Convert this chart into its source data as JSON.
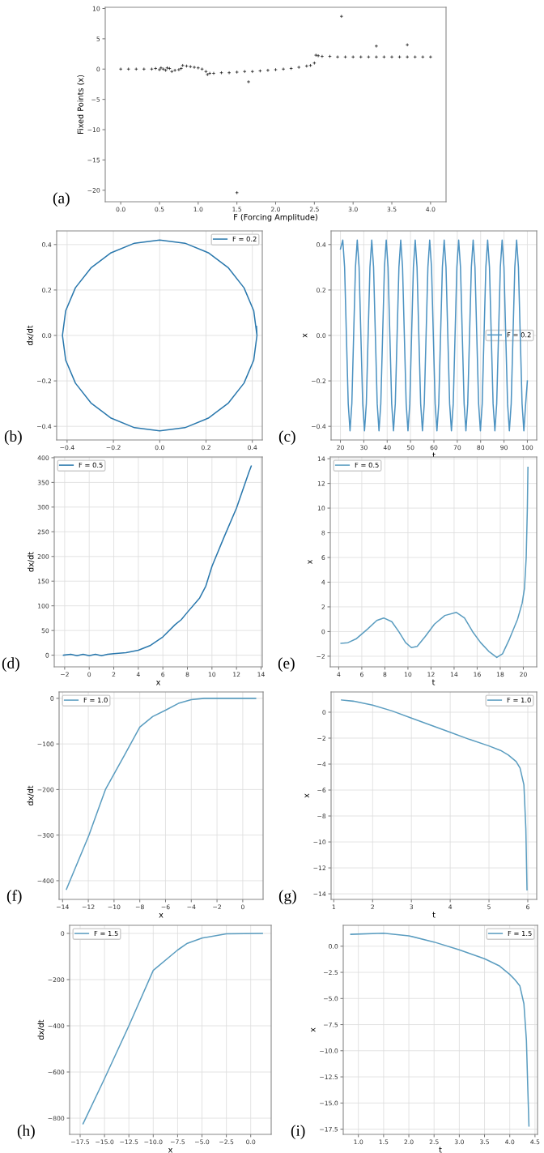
{
  "chart_data": [
    {
      "type": "scatter",
      "xlabel": "F (Forcing Amplitude)",
      "ylabel": "Fixed Points (x)",
      "annotations": [
        "(a)"
      ],
      "marker": "cross",
      "grid": false,
      "xlim": [
        -0.2,
        4.2
      ],
      "ylim": [
        -21.9,
        10.2
      ],
      "xticks": [
        {
          "value": 0,
          "label": "0.0"
        },
        0.5,
        {
          "value": 1,
          "label": "1.0"
        },
        1.5,
        {
          "value": 2,
          "label": "2.0"
        },
        2.5,
        {
          "value": 3,
          "label": "3.0"
        },
        3.5,
        {
          "value": 4,
          "label": "4.0"
        }
      ],
      "yticks": [
        {
          "value": -20,
          "label": "−20"
        },
        {
          "value": -15,
          "label": "−15"
        },
        {
          "value": -10,
          "label": "−10"
        },
        {
          "value": -5,
          "label": "−5"
        },
        0,
        5,
        10
      ],
      "series": [
        {
          "color": "#000000",
          "x": [
            0.0,
            0.1,
            0.2,
            0.3,
            0.4,
            0.45,
            0.5,
            0.52,
            0.55,
            0.58,
            0.6,
            0.63,
            0.66,
            0.7,
            0.75,
            0.78,
            0.8,
            0.85,
            0.9,
            0.95,
            1.0,
            1.05,
            1.1,
            1.12,
            1.15,
            1.2,
            1.3,
            1.4,
            1.5,
            1.6,
            1.7,
            1.8,
            1.9,
            2.0,
            2.1,
            2.2,
            2.3,
            2.4,
            2.45,
            2.5,
            2.52,
            2.55,
            2.6,
            2.7,
            2.8,
            2.9,
            3.0,
            3.1,
            3.2,
            3.3,
            3.4,
            3.5,
            3.6,
            3.7,
            3.8,
            3.9,
            4.0,
            1.5,
            1.65,
            2.85,
            3.3,
            3.7
          ],
          "values": [
            0,
            0,
            0,
            0,
            0,
            0.1,
            -0.1,
            0.2,
            0,
            -0.2,
            0.2,
            0.1,
            -0.4,
            -0.2,
            -0.1,
            0.1,
            0.6,
            0.5,
            0.4,
            0.3,
            0.2,
            0,
            -0.4,
            -0.9,
            -0.7,
            -0.7,
            -0.6,
            -0.6,
            -0.5,
            -0.4,
            -0.4,
            -0.3,
            -0.2,
            -0.1,
            0,
            0.1,
            0.3,
            0.5,
            0.6,
            1.0,
            2.3,
            2.2,
            2.1,
            2.1,
            2.0,
            2.0,
            2.0,
            2.0,
            2.0,
            2.0,
            2.0,
            2.0,
            2.0,
            2.0,
            2.0,
            2.0,
            2.0,
            -20.4,
            -2.1,
            8.7,
            3.8,
            4.0
          ]
        }
      ]
    },
    {
      "type": "line",
      "annotations": [
        "(b)"
      ],
      "grid": true,
      "legend": "top right",
      "xlim": [
        -0.445,
        0.443
      ],
      "ylim": [
        -0.46,
        0.46
      ],
      "xticks": [
        {
          "value": -0.4,
          "label": "−0.4"
        },
        {
          "value": -0.2,
          "label": "−0.2"
        },
        {
          "value": 0,
          "label": "0.0"
        },
        0.2,
        0.4
      ],
      "yticks": [
        {
          "value": -0.4,
          "label": "−0.4"
        },
        {
          "value": -0.2,
          "label": "−0.2"
        },
        {
          "value": 0,
          "label": "0.0"
        },
        0.2,
        0.4
      ],
      "ylabel": "dx/dt",
      "series": [
        {
          "name": "F = 0.2",
          "color": "#2a78ad",
          "x": [
            0.42,
            0.406,
            0.364,
            0.297,
            0.21,
            0.109,
            0,
            -0.109,
            -0.21,
            -0.297,
            -0.364,
            -0.406,
            -0.42,
            -0.406,
            -0.364,
            -0.297,
            -0.21,
            -0.109,
            0,
            0.109,
            0.21,
            0.297,
            0.364,
            0.406,
            0.42,
            0.418
          ],
          "values": [
            0,
            0.109,
            0.21,
            0.297,
            0.364,
            0.406,
            0.42,
            0.406,
            0.364,
            0.297,
            0.21,
            0.109,
            0,
            -0.109,
            -0.21,
            -0.297,
            -0.364,
            -0.406,
            -0.42,
            -0.406,
            -0.364,
            -0.297,
            -0.21,
            -0.109,
            0,
            0.04
          ]
        }
      ]
    },
    {
      "type": "line",
      "annotations": [
        "(c)"
      ],
      "grid": true,
      "legend": "right",
      "xlim": [
        16,
        104
      ],
      "ylim": [
        -0.46,
        0.46
      ],
      "xticks": [
        20,
        30,
        40,
        50,
        60,
        70,
        80,
        90,
        100
      ],
      "yticks": [
        {
          "value": -0.4,
          "label": "−0.4"
        },
        {
          "value": -0.2,
          "label": "−0.2"
        },
        {
          "value": 0,
          "label": "0.0"
        },
        0.2,
        0.4
      ],
      "xlabel": "t",
      "ylabel": "x",
      "series": [
        {
          "name": "F = 0.2",
          "color": "#4d93c2",
          "x": [
            20.0,
            21.0,
            21.78,
            22.55,
            23.33,
            24.1,
            24.88,
            25.65,
            26.43,
            27.2,
            27.98,
            28.75,
            29.53,
            30.3,
            31.08,
            31.85,
            32.63,
            33.4,
            34.18,
            34.95,
            35.73,
            36.5,
            37.28,
            38.05,
            38.83,
            39.6,
            40.38,
            41.15,
            41.93,
            42.7,
            43.48,
            44.25,
            45.03,
            45.8,
            46.58,
            47.35,
            48.13,
            48.9,
            49.68,
            50.45,
            51.23,
            52.0,
            52.78,
            53.55,
            54.33,
            55.1,
            55.88,
            56.65,
            57.43,
            58.2,
            58.98,
            59.75,
            60.53,
            61.3,
            62.08,
            62.85,
            63.63,
            64.4,
            65.18,
            65.95,
            66.73,
            67.5,
            68.28,
            69.05,
            69.83,
            70.6,
            71.38,
            72.15,
            72.93,
            73.7,
            74.48,
            75.25,
            76.03,
            76.8,
            77.58,
            78.35,
            79.13,
            79.9,
            80.68,
            81.45,
            82.23,
            83.0,
            83.78,
            84.55,
            85.33,
            86.1,
            86.88,
            87.65,
            88.43,
            89.2,
            89.98,
            90.75,
            91.53,
            92.3,
            93.08,
            93.85,
            94.63,
            95.4,
            96.18,
            96.95,
            97.73,
            98.5,
            99.28,
            100.0
          ],
          "values": [
            0.38,
            0.42,
            0.3,
            0,
            -0.3,
            -0.42,
            -0.3,
            0,
            0.3,
            0.42,
            0.3,
            0,
            -0.3,
            -0.42,
            -0.3,
            0,
            0.3,
            0.42,
            0.3,
            0,
            -0.3,
            -0.42,
            -0.3,
            0,
            0.3,
            0.42,
            0.3,
            0,
            -0.3,
            -0.42,
            -0.3,
            0,
            0.3,
            0.42,
            0.3,
            0,
            -0.3,
            -0.42,
            -0.3,
            0,
            0.3,
            0.42,
            0.3,
            0,
            -0.3,
            -0.42,
            -0.3,
            0,
            0.3,
            0.42,
            0.3,
            0,
            -0.3,
            -0.42,
            -0.3,
            0,
            0.3,
            0.42,
            0.3,
            0,
            -0.3,
            -0.42,
            -0.3,
            0,
            0.3,
            0.42,
            0.3,
            0,
            -0.3,
            -0.42,
            -0.3,
            0,
            0.3,
            0.42,
            0.3,
            0,
            -0.3,
            -0.42,
            -0.3,
            0,
            0.3,
            0.42,
            0.3,
            0,
            -0.3,
            -0.42,
            -0.3,
            0,
            0.3,
            0.42,
            0.3,
            0,
            -0.3,
            -0.42,
            -0.3,
            0,
            0.3,
            0.42,
            0.3,
            0,
            -0.3,
            -0.42,
            -0.3,
            -0.2
          ]
        }
      ]
    },
    {
      "type": "line",
      "annotations": [
        "(d)"
      ],
      "grid": true,
      "legend": "top left",
      "xlim": [
        -2.85,
        14.1
      ],
      "ylim": [
        -23.6,
        401.5
      ],
      "xticks": [
        {
          "value": -2,
          "label": "−2"
        },
        0,
        2,
        4,
        6,
        8,
        10,
        12,
        14
      ],
      "yticks": [
        0,
        50,
        100,
        150,
        200,
        250,
        300,
        350,
        400
      ],
      "xlabel": "x",
      "ylabel": "dx/dt",
      "series": [
        {
          "name": "F = 0.5",
          "color": "#2a78ad",
          "x": [
            -2.1,
            -1.5,
            -1.0,
            -0.5,
            0.0,
            0.5,
            1.0,
            1.5,
            2,
            3,
            4,
            5,
            6,
            7,
            7.5,
            8,
            9,
            9.5,
            10,
            11,
            12,
            13,
            13.2
          ],
          "values": [
            0,
            2,
            -1,
            2,
            -1,
            2,
            -1,
            2,
            3,
            5,
            10,
            20,
            37,
            62,
            72,
            87,
            116,
            140,
            180,
            240,
            298,
            370,
            383
          ]
        }
      ]
    },
    {
      "type": "line",
      "annotations": [
        "(e)"
      ],
      "grid": true,
      "legend": "top left",
      "xlim": [
        3.27,
        21.16
      ],
      "ylim": [
        -2.86,
        14.14
      ],
      "xticks": [
        4,
        6,
        8,
        10,
        12,
        14,
        16,
        18,
        20
      ],
      "yticks": [
        {
          "value": -2,
          "label": "−2"
        },
        0,
        2,
        4,
        6,
        8,
        10,
        12,
        14
      ],
      "xlabel": "t",
      "ylabel": "x",
      "series": [
        {
          "name": "F = 0.5",
          "color": "#5b9dc0",
          "x": [
            4.2,
            4.8,
            5.5,
            6.5,
            7.3,
            7.9,
            8.6,
            9.2,
            9.8,
            10.3,
            10.8,
            11.5,
            12.3,
            13.2,
            14.2,
            14.9,
            15.6,
            16.3,
            17.0,
            17.7,
            18.2,
            18.8,
            19.5,
            19.9,
            20.1,
            20.25,
            20.35,
            20.4
          ],
          "values": [
            -0.95,
            -0.9,
            -0.6,
            0.2,
            0.9,
            1.1,
            0.8,
            0,
            -0.9,
            -1.3,
            -1.2,
            -0.4,
            0.6,
            1.3,
            1.55,
            1.1,
            0,
            -0.9,
            -1.6,
            -2.1,
            -1.8,
            -0.6,
            1.0,
            2.3,
            3.5,
            6,
            10,
            13.3
          ]
        }
      ]
    },
    {
      "type": "line",
      "annotations": [
        "(f)"
      ],
      "grid": true,
      "legend": "top left",
      "xlim": [
        -14.27,
        1.58
      ],
      "ylim": [
        -441,
        14
      ],
      "xticks": [
        {
          "value": -14,
          "label": "−14"
        },
        {
          "value": -12,
          "label": "−12"
        },
        {
          "value": -10,
          "label": "−10"
        },
        {
          "value": -8,
          "label": "−8"
        },
        {
          "value": -6,
          "label": "−6"
        },
        {
          "value": -4,
          "label": "−4"
        },
        {
          "value": -2,
          "label": "−2"
        },
        0
      ],
      "yticks": [
        {
          "value": -400,
          "label": "−400"
        },
        {
          "value": -300,
          "label": "−300"
        },
        {
          "value": -200,
          "label": "−200"
        },
        {
          "value": -100,
          "label": "−100"
        },
        0
      ],
      "xlabel": "x",
      "ylabel": "dx/dt",
      "series": [
        {
          "name": "F = 1.0",
          "color": "#5b9dc0",
          "x": [
            -13.7,
            -11.95,
            -10.67,
            -9.16,
            -8,
            -7,
            -6,
            -5,
            -4,
            -3,
            1
          ],
          "values": [
            -419,
            -300,
            -200,
            -123,
            -63,
            -40,
            -26,
            -11,
            -3,
            0,
            0
          ]
        }
      ]
    },
    {
      "type": "line",
      "annotations": [
        "(g)"
      ],
      "grid": true,
      "legend": "top right",
      "xlim": [
        0.93,
        6.23
      ],
      "ylim": [
        -14.43,
        1.56
      ],
      "xticks": [
        1,
        2,
        3,
        4,
        5,
        6
      ],
      "yticks": [
        {
          "value": -14,
          "label": "−14"
        },
        {
          "value": -12,
          "label": "−12"
        },
        {
          "value": -10,
          "label": "−10"
        },
        {
          "value": -8,
          "label": "−8"
        },
        {
          "value": -6,
          "label": "−6"
        },
        {
          "value": -4,
          "label": "−4"
        },
        {
          "value": -2,
          "label": "−2"
        },
        0
      ],
      "xlabel": "t",
      "ylabel": "x",
      "series": [
        {
          "name": "F = 1.0",
          "color": "#5b9dc0",
          "x": [
            1.2,
            1.5,
            2,
            2.5,
            3,
            3.5,
            4,
            4.5,
            5,
            5.3,
            5.5,
            5.7,
            5.8,
            5.9,
            5.95,
            5.98
          ],
          "values": [
            0.94,
            0.85,
            0.55,
            0.1,
            -0.45,
            -1.0,
            -1.55,
            -2.1,
            -2.6,
            -2.95,
            -3.3,
            -3.8,
            -4.3,
            -5.6,
            -9,
            -13.7
          ]
        }
      ]
    },
    {
      "type": "line",
      "annotations": [
        "(h)"
      ],
      "grid": true,
      "legend": "top left",
      "xlim": [
        -18.58,
        2.1
      ],
      "ylim": [
        -870,
        35
      ],
      "xticks": [
        {
          "value": -17.5,
          "label": "−17.5"
        },
        {
          "value": -15,
          "label": "−15.0"
        },
        {
          "value": -12.5,
          "label": "−12.5"
        },
        {
          "value": -10,
          "label": "−10.0"
        },
        {
          "value": -7.5,
          "label": "−7.5"
        },
        {
          "value": -5,
          "label": "−5.0"
        },
        {
          "value": -2.5,
          "label": "−2.5"
        },
        {
          "value": 0,
          "label": "0.0"
        }
      ],
      "yticks": [
        {
          "value": -800,
          "label": "−800"
        },
        {
          "value": -600,
          "label": "−600"
        },
        {
          "value": -400,
          "label": "−400"
        },
        {
          "value": -200,
          "label": "−200"
        },
        0
      ],
      "xlabel": "x",
      "ylabel": "dx/dt",
      "series": [
        {
          "name": "F = 1.5",
          "color": "#5b9dc0",
          "x": [
            -17.2,
            -15,
            -12.5,
            -10,
            -7.5,
            -6.5,
            -5,
            -2.5,
            1.2
          ],
          "values": [
            -824,
            -629,
            -400,
            -160,
            -72,
            -43,
            -20,
            -2,
            0
          ]
        }
      ]
    },
    {
      "type": "line",
      "annotations": [
        "(i)"
      ],
      "grid": true,
      "legend": "top right",
      "xlim": [
        0.7,
        4.55
      ],
      "ylim": [
        -18.0,
        2.0
      ],
      "xticks": [
        {
          "value": 1,
          "label": "1.0"
        },
        1.5,
        {
          "value": 2,
          "label": "2.0"
        },
        2.5,
        {
          "value": 3,
          "label": "3.0"
        },
        3.5,
        {
          "value": 4,
          "label": "4.0"
        },
        4.5
      ],
      "yticks": [
        {
          "value": -17.5,
          "label": "−17.5"
        },
        {
          "value": -15,
          "label": "−15.0"
        },
        {
          "value": -12.5,
          "label": "−12.5"
        },
        {
          "value": -10,
          "label": "−10.0"
        },
        {
          "value": -7.5,
          "label": "−7.5"
        },
        {
          "value": -5,
          "label": "−5.0"
        },
        {
          "value": -2.5,
          "label": "−2.5"
        },
        {
          "value": 0,
          "label": "0.0"
        }
      ],
      "xlabel": "t",
      "ylabel": "x",
      "series": [
        {
          "name": "F = 1.5",
          "color": "#5b9dc0",
          "x": [
            0.85,
            1.5,
            2,
            2.5,
            3,
            3.5,
            3.8,
            4,
            4.1,
            4.2,
            4.28,
            4.33,
            4.36,
            4.38
          ],
          "values": [
            1.14,
            1.25,
            1.0,
            0.4,
            -0.35,
            -1.2,
            -1.9,
            -2.7,
            -3.2,
            -3.8,
            -5.5,
            -9,
            -14,
            -17.2
          ]
        }
      ]
    }
  ]
}
